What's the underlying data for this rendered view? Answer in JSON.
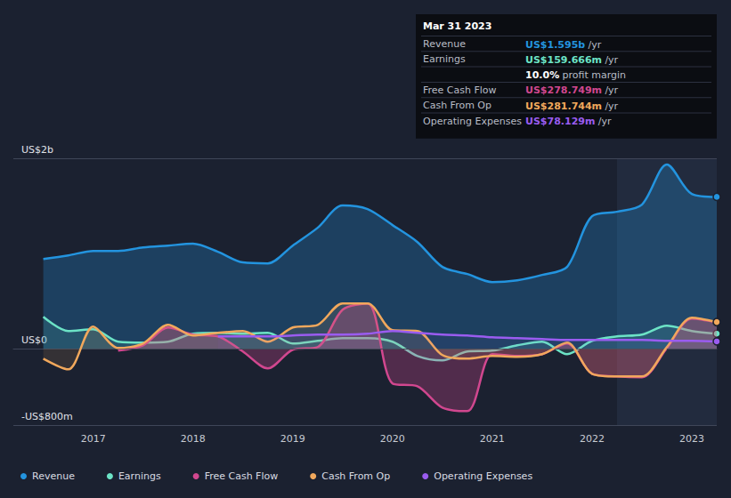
{
  "chart_data": {
    "type": "line",
    "x": [
      2016.5,
      2016.75,
      2017.0,
      2017.25,
      2017.5,
      2017.75,
      2018.0,
      2018.25,
      2018.5,
      2018.75,
      2019.0,
      2019.25,
      2019.5,
      2019.75,
      2020.0,
      2020.25,
      2020.5,
      2020.75,
      2021.0,
      2021.25,
      2021.5,
      2021.75,
      2022.0,
      2022.25,
      2022.5,
      2022.75,
      2023.0,
      2023.25
    ],
    "series": [
      {
        "name": "Revenue",
        "color": "#2394df",
        "values": [
          944,
          981,
          1028,
          1028,
          1065,
          1084,
          1103,
          1019,
          907,
          897,
          1084,
          1271,
          1505,
          1467,
          1299,
          1121,
          860,
          785,
          701,
          720,
          776,
          860,
          1393,
          1439,
          1514,
          1935,
          1626,
          1595
        ]
      },
      {
        "name": "Earnings",
        "color": "#6ce3c6",
        "values": [
          336,
          187,
          206,
          75,
          65,
          75,
          159,
          168,
          159,
          168,
          56,
          84,
          112,
          112,
          75,
          -75,
          -121,
          -28,
          -19,
          37,
          75,
          -56,
          84,
          131,
          150,
          243,
          187,
          159.666
        ]
      },
      {
        "name": "Free Cash Flow",
        "color": "#d1478f",
        "values": [
          null,
          null,
          null,
          -19,
          37,
          224,
          150,
          131,
          -28,
          -206,
          -9,
          19,
          411,
          477,
          -364,
          -393,
          -617,
          -654,
          -56,
          -75,
          -56,
          56,
          -262,
          -290,
          -299,
          9,
          318,
          278.749
        ]
      },
      {
        "name": "Cash From Op",
        "color": "#f1a85c",
        "values": [
          -103,
          -215,
          234,
          9,
          56,
          252,
          140,
          168,
          187,
          75,
          224,
          252,
          477,
          477,
          196,
          187,
          -65,
          -103,
          -75,
          -84,
          -56,
          65,
          -262,
          -290,
          -290,
          19,
          327,
          281.744
        ]
      },
      {
        "name": "Operating Expenses",
        "color": "#9a5cf0",
        "values": [
          null,
          null,
          null,
          null,
          null,
          null,
          null,
          131,
          131,
          131,
          140,
          150,
          150,
          159,
          187,
          168,
          150,
          140,
          121,
          112,
          103,
          93,
          93,
          93,
          93,
          84,
          84,
          78.129
        ]
      }
    ],
    "xlim": [
      2016.2,
      2023.25
    ],
    "xticks": [
      2017,
      2018,
      2019,
      2020,
      2021,
      2022,
      2023
    ],
    "ylim": [
      -800,
      2000
    ],
    "yticks": [
      {
        "value": -800,
        "label": "-US$800m"
      },
      {
        "value": 0,
        "label": "US$0"
      },
      {
        "value": 2000,
        "label": "US$2b"
      }
    ],
    "shaded_range": [
      2022.25,
      2023.25
    ],
    "grid": true,
    "legend": "bottom-left",
    "info_box": {
      "title": "Mar 31 2023",
      "rows": [
        {
          "label": "Revenue",
          "value": "US$1.595b",
          "unit": "/yr",
          "color": "#2394df"
        },
        {
          "label": "Earnings",
          "value": "US$159.666m",
          "unit": "/yr",
          "color": "#6ce3c6"
        },
        {
          "value": "10.0%",
          "unit": "profit margin",
          "color": "#ffffff"
        },
        {
          "label": "Free Cash Flow",
          "value": "US$278.749m",
          "unit": "/yr",
          "color": "#d1478f"
        },
        {
          "label": "Cash From Op",
          "value": "US$281.744m",
          "unit": "/yr",
          "color": "#f1a85c"
        },
        {
          "label": "Operating Expenses",
          "value": "US$78.129m",
          "unit": "/yr",
          "color": "#9a5cf0"
        }
      ]
    }
  }
}
